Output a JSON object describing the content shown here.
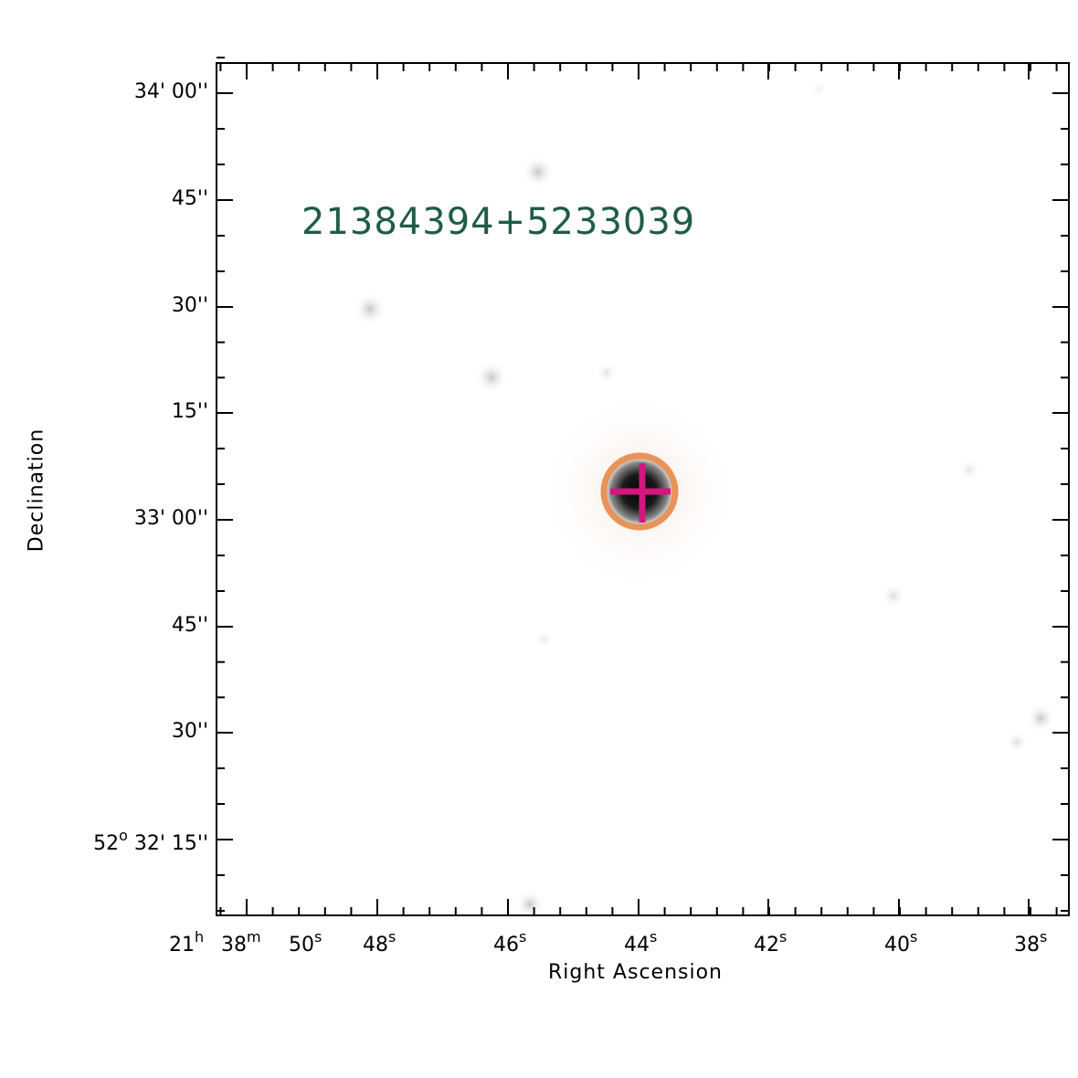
{
  "image": {
    "object_name": "21384394+5233039",
    "marker_colors": {
      "circle": "#e8935a",
      "cross": "#d4177e",
      "label": "#1f5c45"
    }
  },
  "axes": {
    "x_title": "Right Ascension",
    "y_title": "Declination",
    "y_ticks": [
      {
        "label": "34' 00''"
      },
      {
        "label": "45''"
      },
      {
        "label": "30''"
      },
      {
        "label": "15''"
      },
      {
        "label": "33' 00''"
      },
      {
        "label": "45''"
      },
      {
        "label": "30''"
      },
      {
        "label": "52° 32' 15''",
        "deg": "52",
        "sup": "o",
        "rest": "32' 15''"
      }
    ],
    "x_ticks": [
      {
        "base": "21",
        "sup": "h"
      },
      {
        "base": "38",
        "sup": "m"
      },
      {
        "base": "50",
        "sup": "s"
      },
      {
        "base": "48",
        "sup": "s"
      },
      {
        "base": "46",
        "sup": "s"
      },
      {
        "base": "44",
        "sup": "s"
      },
      {
        "base": "42",
        "sup": "s"
      },
      {
        "base": "40",
        "sup": "s"
      },
      {
        "base": "38",
        "sup": "s"
      }
    ]
  }
}
